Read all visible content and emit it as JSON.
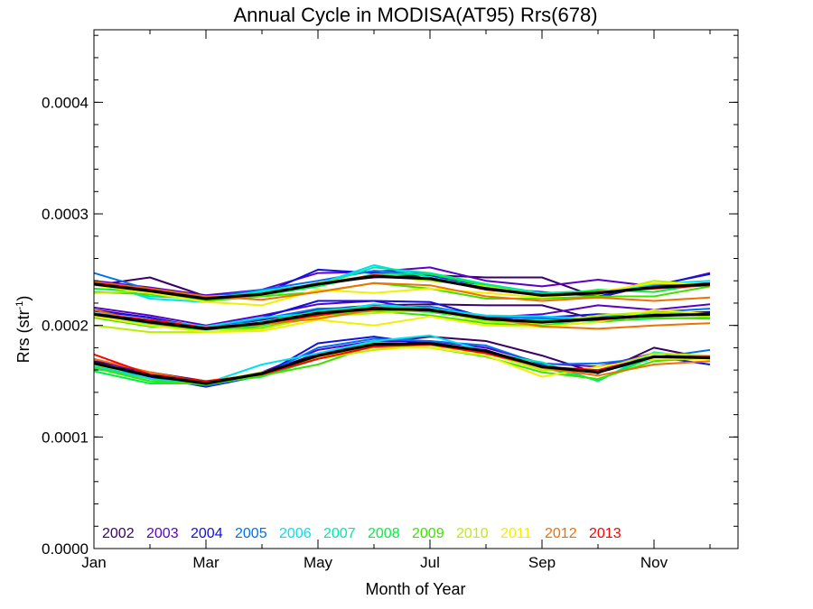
{
  "chart_data": {
    "type": "line",
    "title": "Annual Cycle in MODISA(AT95) Rrs(678)",
    "xlabel": "Month of Year",
    "ylabel_main": "Rrs (str",
    "ylabel_sup": "-1",
    "ylabel_close": ")",
    "xlim": [
      1,
      12.5
    ],
    "ylim": [
      0,
      0.000465
    ],
    "xticks": [
      {
        "value": 1,
        "label": "Jan"
      },
      {
        "value": 3,
        "label": "Mar"
      },
      {
        "value": 5,
        "label": "May"
      },
      {
        "value": 7,
        "label": "Jul"
      },
      {
        "value": 9,
        "label": "Sep"
      },
      {
        "value": 11,
        "label": "Nov"
      }
    ],
    "yticks": [
      {
        "value": 0,
        "label": "0.0000"
      },
      {
        "value": 0.0001,
        "label": "0.0001"
      },
      {
        "value": 0.0002,
        "label": "0.0002"
      },
      {
        "value": 0.0003,
        "label": "0.0003"
      },
      {
        "value": 0.0004,
        "label": "0.0004"
      }
    ],
    "x": [
      1,
      2,
      3,
      4,
      5,
      6,
      7,
      8,
      9,
      10,
      11,
      12
    ],
    "legend_position": "bottom-left",
    "series": [
      {
        "name": "2002",
        "color": "#3a0066",
        "lower": [
          0.000168,
          0.000158,
          0.00015,
          0.000157,
          0.000175,
          0.000184,
          0.00019,
          0.000186,
          0.000173,
          0.000157,
          0.00018,
          0.00017
        ],
        "middle": [
          0.000214,
          0.000207,
          0.000198,
          0.000205,
          0.000214,
          0.000218,
          0.000219,
          0.000218,
          0.000218,
          0.000205,
          0.00021,
          0.000212
        ],
        "upper": [
          0.000236,
          0.000243,
          0.000226,
          0.000228,
          0.000238,
          0.000243,
          0.000245,
          0.000243,
          0.000243,
          0.000225,
          0.000237,
          0.000236
        ]
      },
      {
        "name": "2003",
        "color": "#5a00c8",
        "lower": [
          0.00017,
          0.000155,
          0.000148,
          0.000158,
          0.000178,
          0.000186,
          0.000186,
          0.00018,
          0.000166,
          0.000163,
          0.000175,
          0.000172
        ],
        "middle": [
          0.000216,
          0.000209,
          0.0002,
          0.000209,
          0.000219,
          0.000222,
          0.000213,
          0.000207,
          0.00021,
          0.000218,
          0.000214,
          0.000219
        ],
        "upper": [
          0.00024,
          0.000234,
          0.000227,
          0.000232,
          0.000247,
          0.000248,
          0.000252,
          0.00024,
          0.000235,
          0.000241,
          0.000235,
          0.000247
        ]
      },
      {
        "name": "2004",
        "color": "#1010e0",
        "lower": [
          0.000166,
          0.000154,
          0.000145,
          0.000155,
          0.000184,
          0.00019,
          0.000183,
          0.000178,
          0.000162,
          0.000158,
          0.000172,
          0.000165
        ],
        "middle": [
          0.000213,
          0.000207,
          0.000197,
          0.000207,
          0.000222,
          0.000222,
          0.000221,
          0.000207,
          0.000207,
          0.00021,
          0.000208,
          0.000211
        ],
        "upper": [
          0.000237,
          0.000231,
          0.000226,
          0.000228,
          0.00025,
          0.000247,
          0.000245,
          0.000234,
          0.00023,
          0.000226,
          0.000236,
          0.000246
        ]
      },
      {
        "name": "2005",
        "color": "#0070f0",
        "lower": [
          0.000161,
          0.000155,
          0.000146,
          0.000155,
          0.00018,
          0.000188,
          0.000186,
          0.000182,
          0.000165,
          0.000166,
          0.000171,
          0.000178
        ],
        "middle": [
          0.000211,
          0.000205,
          0.000197,
          0.000206,
          0.000215,
          0.000216,
          0.000217,
          0.000208,
          0.000206,
          0.000207,
          0.000212,
          0.000215
        ],
        "upper": [
          0.000247,
          0.000232,
          0.000225,
          0.000232,
          0.00024,
          0.000249,
          0.000246,
          0.000236,
          0.000228,
          0.00023,
          0.000236,
          0.000238
        ]
      },
      {
        "name": "2006",
        "color": "#00e0f0",
        "lower": [
          0.000163,
          0.00015,
          0.000148,
          0.000165,
          0.000175,
          0.000186,
          0.000191,
          0.000177,
          0.000163,
          0.000158,
          0.00017,
          0.000171
        ],
        "middle": [
          0.00021,
          0.000205,
          0.000199,
          0.000207,
          0.000211,
          0.000219,
          0.000215,
          0.000209,
          0.000208,
          0.000206,
          0.00021,
          0.00021
        ],
        "upper": [
          0.00024,
          0.000224,
          0.000221,
          0.000231,
          0.000237,
          0.000254,
          0.000243,
          0.000234,
          0.000229,
          0.000229,
          0.000237,
          0.00024
        ]
      },
      {
        "name": "2007",
        "color": "#00e8a8",
        "lower": [
          0.000164,
          0.000152,
          0.000147,
          0.000156,
          0.000172,
          0.000185,
          0.000183,
          0.000175,
          0.000167,
          0.00015,
          0.000176,
          0.00017
        ],
        "middle": [
          0.000211,
          0.000201,
          0.000198,
          0.000203,
          0.000213,
          0.000217,
          0.000215,
          0.000205,
          0.000205,
          0.000204,
          0.000206,
          0.000207
        ],
        "upper": [
          0.000237,
          0.000226,
          0.000224,
          0.00023,
          0.000236,
          0.000252,
          0.000247,
          0.000237,
          0.000229,
          0.000231,
          0.000234,
          0.000237
        ]
      },
      {
        "name": "2008",
        "color": "#00f040",
        "lower": [
          0.000159,
          0.000148,
          0.000148,
          0.000154,
          0.00017,
          0.000182,
          0.000184,
          0.000177,
          0.000162,
          0.000151,
          0.000172,
          0.00017
        ],
        "middle": [
          0.000208,
          0.0002,
          0.000196,
          0.0002,
          0.00021,
          0.000214,
          0.000212,
          0.000205,
          0.0002,
          0.000206,
          0.000212,
          0.000209
        ],
        "upper": [
          0.000233,
          0.00023,
          0.000222,
          0.000227,
          0.000235,
          0.000246,
          0.000246,
          0.000236,
          0.000226,
          0.000232,
          0.00023,
          0.000238
        ]
      },
      {
        "name": "2009",
        "color": "#40e000",
        "lower": [
          0.000162,
          0.00015,
          0.000147,
          0.000155,
          0.000165,
          0.000182,
          0.00018,
          0.000172,
          0.000158,
          0.000152,
          0.000168,
          0.000171
        ],
        "middle": [
          0.000207,
          0.000199,
          0.000197,
          0.000198,
          0.000209,
          0.000213,
          0.000209,
          0.000202,
          0.000199,
          0.000203,
          0.000207,
          0.000206
        ],
        "upper": [
          0.00023,
          0.000228,
          0.000222,
          0.000226,
          0.00023,
          0.000238,
          0.000233,
          0.000224,
          0.000224,
          0.000226,
          0.000226,
          0.000235
        ]
      },
      {
        "name": "2010",
        "color": "#b8f000",
        "lower": [
          0.000166,
          0.000155,
          0.000149,
          0.000158,
          0.00017,
          0.000178,
          0.000182,
          0.000175,
          0.00016,
          0.00016,
          0.000175,
          0.000173
        ],
        "middle": [
          0.0002,
          0.000194,
          0.000194,
          0.000197,
          0.000208,
          0.000211,
          0.000214,
          0.000203,
          0.000202,
          0.000209,
          0.000212,
          0.000208
        ],
        "upper": [
          0.000229,
          0.000231,
          0.000226,
          0.000227,
          0.000238,
          0.000245,
          0.00024,
          0.000235,
          0.000227,
          0.000228,
          0.00024,
          0.000236
        ]
      },
      {
        "name": "2011",
        "color": "#f0f000",
        "lower": [
          0.000165,
          0.000155,
          0.00015,
          0.000157,
          0.000172,
          0.00018,
          0.00018,
          0.000173,
          0.000154,
          0.000163,
          0.00017,
          0.00017
        ],
        "middle": [
          0.000208,
          0.0002,
          0.000194,
          0.000195,
          0.000205,
          0.0002,
          0.000208,
          0.0002,
          0.000199,
          0.000203,
          0.000214,
          0.00021
        ],
        "upper": [
          0.000236,
          0.000229,
          0.000221,
          0.000218,
          0.000232,
          0.000229,
          0.000233,
          0.000229,
          0.000225,
          0.00023,
          0.000238,
          0.000237
        ]
      },
      {
        "name": "2012",
        "color": "#f07000",
        "lower": [
          0.00017,
          0.000158,
          0.000149,
          0.000157,
          0.000172,
          0.000183,
          0.000184,
          0.000176,
          0.000162,
          0.000155,
          0.000165,
          0.000168
        ],
        "middle": [
          0.000214,
          0.000202,
          0.000197,
          0.000201,
          0.000206,
          0.000214,
          0.000214,
          0.000207,
          0.000199,
          0.000197,
          0.0002,
          0.000202
        ],
        "upper": [
          0.000239,
          0.000233,
          0.000226,
          0.000223,
          0.00023,
          0.000238,
          0.000236,
          0.000226,
          0.000222,
          0.000225,
          0.000222,
          0.000225
        ]
      },
      {
        "name": "2013",
        "color": "#ff0000",
        "lower": [
          0.000174,
          0.000156,
          0.00015,
          0.000156,
          0.00017,
          0.000181,
          0.000183,
          0.000175,
          0.000163,
          0.00016,
          0.000172,
          0.000172
        ],
        "middle": [
          0.00021,
          0.000205,
          0.000198,
          0.000202,
          0.000209,
          0.000216,
          0.000213,
          0.000207,
          0.000203,
          0.000205,
          0.000209,
          0.00021
        ],
        "upper": [
          0.000238,
          0.000232,
          0.000224,
          0.000228,
          0.000237,
          0.000245,
          0.000242,
          0.000232,
          0.000227,
          0.00023,
          0.000233,
          0.000236
        ]
      }
    ],
    "mean": {
      "color": "#000000",
      "lower": [
        0.000166,
        0.000155,
        0.000148,
        0.000157,
        0.000173,
        0.000183,
        0.000184,
        0.000177,
        0.000163,
        0.000158,
        0.000172,
        0.000171
      ],
      "middle": [
        0.00021,
        0.000203,
        0.000197,
        0.000202,
        0.000211,
        0.000215,
        0.000214,
        0.000206,
        0.000203,
        0.000206,
        0.000209,
        0.00021
      ],
      "upper": [
        0.000237,
        0.000231,
        0.000224,
        0.000228,
        0.000237,
        0.000244,
        0.000242,
        0.000233,
        0.000227,
        0.000229,
        0.000234,
        0.000237
      ]
    }
  }
}
